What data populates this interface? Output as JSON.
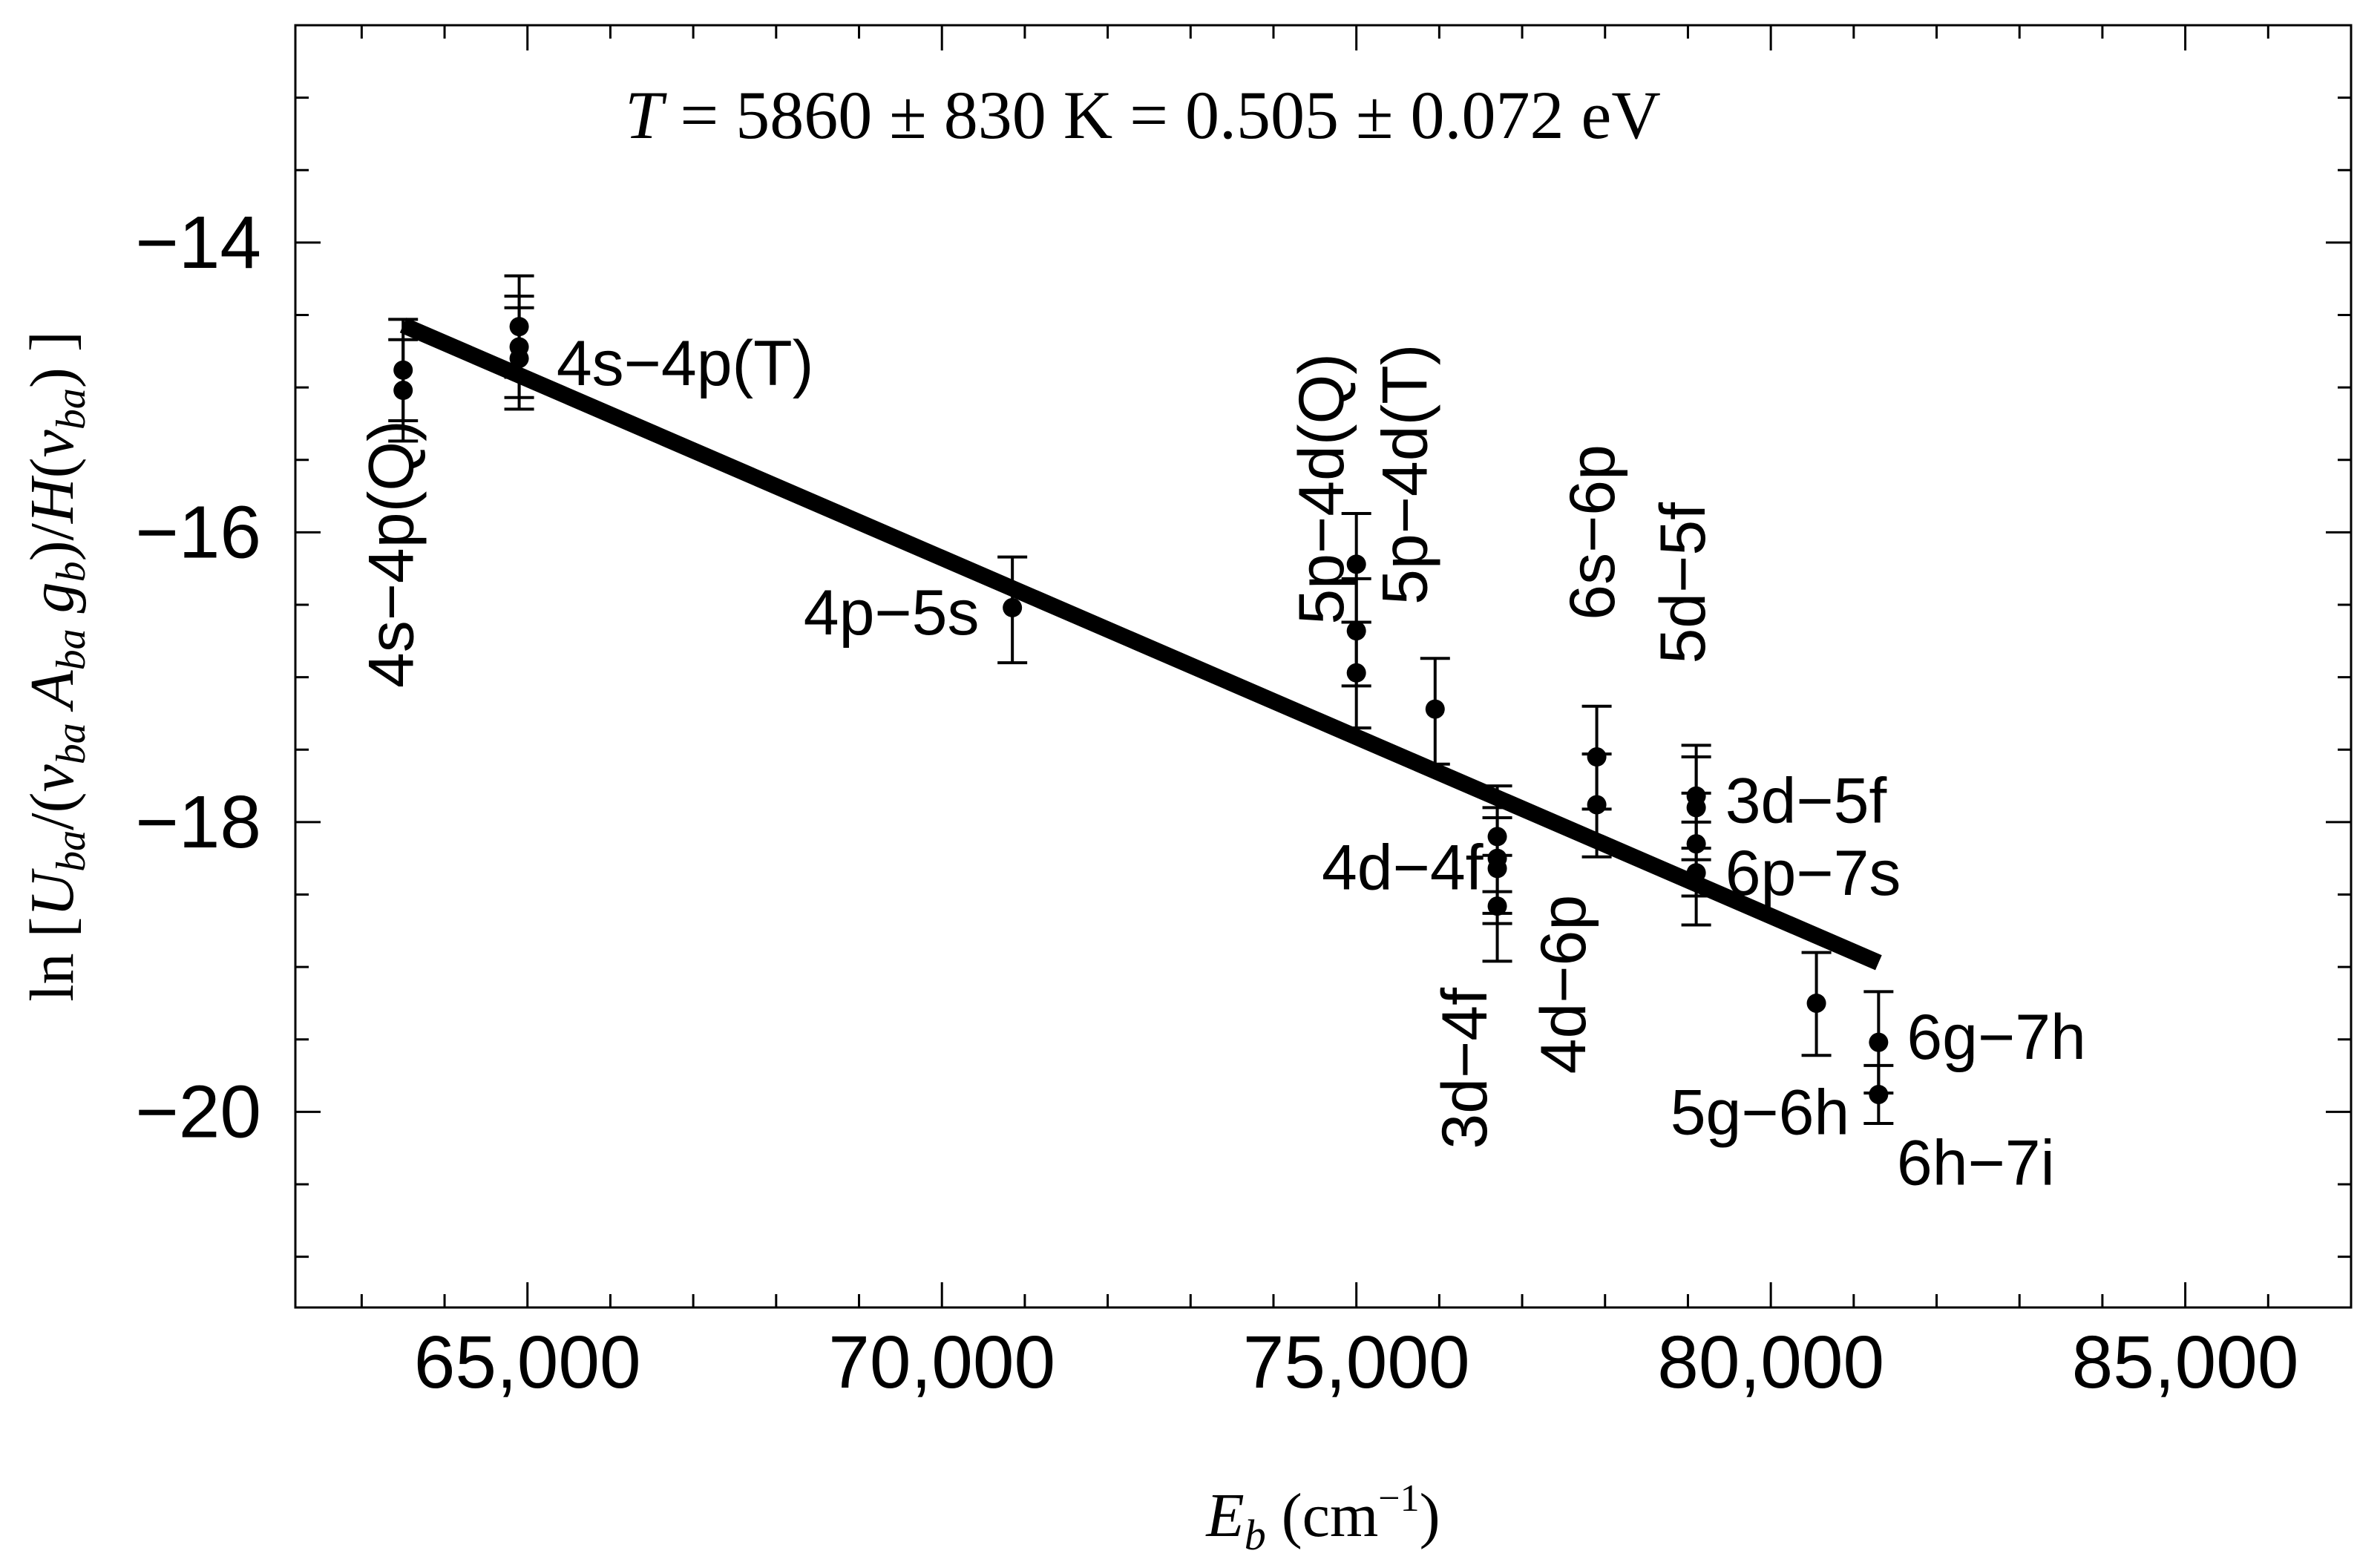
{
  "chart_data": {
    "type": "scatter",
    "title_parts": {
      "var": "T",
      "rest": " = 5860 ± 830 K = 0.505 ± 0.072 eV"
    },
    "xlabel_parts": {
      "var": "E",
      "sub": "b",
      "unit_open": " (cm",
      "unit_exp": "−1",
      "unit_close": ")"
    },
    "ylabel": "ln [Uba/(νba Aba gb)/H(νba) ]",
    "ylabel_parts": [
      {
        "t": "ln [",
        "s": "n"
      },
      {
        "t": "U",
        "s": "i"
      },
      {
        "t": "ba",
        "s": "sub"
      },
      {
        "t": "/(",
        "s": "n"
      },
      {
        "t": "ν",
        "s": "i"
      },
      {
        "t": "ba",
        "s": "sub"
      },
      {
        "t": " A",
        "s": "i"
      },
      {
        "t": "ba",
        "s": "sub"
      },
      {
        "t": " g",
        "s": "i"
      },
      {
        "t": "b",
        "s": "sub"
      },
      {
        "t": ")/",
        "s": "n"
      },
      {
        "t": "H",
        "s": "i"
      },
      {
        "t": "(",
        "s": "n"
      },
      {
        "t": "ν",
        "s": "i"
      },
      {
        "t": "ba",
        "s": "sub"
      },
      {
        "t": ") ]",
        "s": "n"
      }
    ],
    "xlim": [
      62200,
      87000
    ],
    "ylim": [
      -21.35,
      -12.5
    ],
    "x_ticks": [
      65000,
      70000,
      75000,
      80000,
      85000
    ],
    "x_tick_labels": [
      "65,000",
      "70,000",
      "75,000",
      "80,000",
      "85,000"
    ],
    "x_minor_step": 1000,
    "y_ticks": [
      -20,
      -18,
      -16,
      -14
    ],
    "y_tick_labels": [
      "−20",
      "−18",
      "−16",
      "−14"
    ],
    "y_minor_step": 0.5,
    "fit_line": {
      "x": [
        63500,
        81300
      ],
      "y": [
        -14.57,
        -18.97
      ]
    },
    "points": [
      {
        "x": 63500,
        "y": -14.88,
        "yerr_low": 0.35,
        "yerr_high": 0.35
      },
      {
        "x": 63500,
        "y": -15.02,
        "yerr_low": 0.35,
        "yerr_high": 0.35
      },
      {
        "x": 64900,
        "y": -14.58,
        "yerr_low": 0.35,
        "yerr_high": 0.35
      },
      {
        "x": 64900,
        "y": -14.72,
        "yerr_low": 0.35,
        "yerr_high": 0.35
      },
      {
        "x": 64900,
        "y": -14.8,
        "yerr_low": 0.35,
        "yerr_high": 0.35
      },
      {
        "x": 70850,
        "y": -16.52,
        "yerr_low": 0.38,
        "yerr_high": 0.35
      },
      {
        "x": 75000,
        "y": -16.22,
        "yerr_low": 0.4,
        "yerr_high": 0.35
      },
      {
        "x": 75000,
        "y": -16.68,
        "yerr_low": 0.38,
        "yerr_high": 0.36
      },
      {
        "x": 75000,
        "y": -16.97,
        "yerr_low": 0.38,
        "yerr_high": 0.35
      },
      {
        "x": 75950,
        "y": -17.22,
        "yerr_low": 0.38,
        "yerr_high": 0.35
      },
      {
        "x": 76700,
        "y": -18.1,
        "yerr_low": 0.38,
        "yerr_high": 0.35
      },
      {
        "x": 76700,
        "y": -18.25,
        "yerr_low": 0.38,
        "yerr_high": 0.35
      },
      {
        "x": 76700,
        "y": -18.32,
        "yerr_low": 0.38,
        "yerr_high": 0.35
      },
      {
        "x": 76700,
        "y": -18.58,
        "yerr_low": 0.38,
        "yerr_high": 0.35
      },
      {
        "x": 77900,
        "y": -17.55,
        "yerr_low": 0.36,
        "yerr_high": 0.35
      },
      {
        "x": 77900,
        "y": -17.88,
        "yerr_low": 0.36,
        "yerr_high": 0.35
      },
      {
        "x": 79100,
        "y": -17.82,
        "yerr_low": 0.36,
        "yerr_high": 0.35
      },
      {
        "x": 79100,
        "y": -17.9,
        "yerr_low": 0.36,
        "yerr_high": 0.35
      },
      {
        "x": 79100,
        "y": -18.15,
        "yerr_low": 0.36,
        "yerr_high": 0.35
      },
      {
        "x": 79100,
        "y": -18.35,
        "yerr_low": 0.36,
        "yerr_high": 0.35
      },
      {
        "x": 80550,
        "y": -19.25,
        "yerr_low": 0.36,
        "yerr_high": 0.35
      },
      {
        "x": 81300,
        "y": -19.52,
        "yerr_low": 0.35,
        "yerr_high": 0.35
      },
      {
        "x": 81300,
        "y": -19.88,
        "yerr_low": 0.2,
        "yerr_high": 0.2
      }
    ],
    "annotations": [
      {
        "text": "4s−4p(T)",
        "x": 65350,
        "y": -14.83,
        "anchor": "start",
        "rotate": 0
      },
      {
        "text": "4s−4p(Q)",
        "x": 63620,
        "y": -16.15,
        "anchor": "middle",
        "rotate": -90
      },
      {
        "text": "4p−5s",
        "x": 70450,
        "y": -16.55,
        "anchor": "end",
        "rotate": 0
      },
      {
        "text": "5p−4d(Q)",
        "x": 74840,
        "y": -15.7,
        "anchor": "middle",
        "rotate": -90
      },
      {
        "text": "5p−4d(T)",
        "x": 75850,
        "y": -15.6,
        "anchor": "middle",
        "rotate": -90
      },
      {
        "text": "6s−6p",
        "x": 78110,
        "y": -16.0,
        "anchor": "middle",
        "rotate": -90
      },
      {
        "text": "5d−5f",
        "x": 79200,
        "y": -16.35,
        "anchor": "middle",
        "rotate": -90
      },
      {
        "text": "3d−5f",
        "x": 79450,
        "y": -17.85,
        "anchor": "start",
        "rotate": 0
      },
      {
        "text": "4d−4f",
        "x": 76530,
        "y": -18.31,
        "anchor": "end",
        "rotate": 0
      },
      {
        "text": "6p−7s",
        "x": 79450,
        "y": -18.35,
        "anchor": "start",
        "rotate": 0
      },
      {
        "text": "3d−4f",
        "x": 76570,
        "y": -19.7,
        "anchor": "middle",
        "rotate": -90
      },
      {
        "text": "4d−6p",
        "x": 77760,
        "y": -19.12,
        "anchor": "middle",
        "rotate": -90
      },
      {
        "text": "6g−7h",
        "x": 81640,
        "y": -19.48,
        "anchor": "start",
        "rotate": 0
      },
      {
        "text": "5g−6h",
        "x": 80950,
        "y": -20.0,
        "anchor": "end",
        "rotate": 0
      },
      {
        "text": "6h−7i",
        "x": 81520,
        "y": -20.35,
        "anchor": "start",
        "rotate": 0
      }
    ]
  }
}
